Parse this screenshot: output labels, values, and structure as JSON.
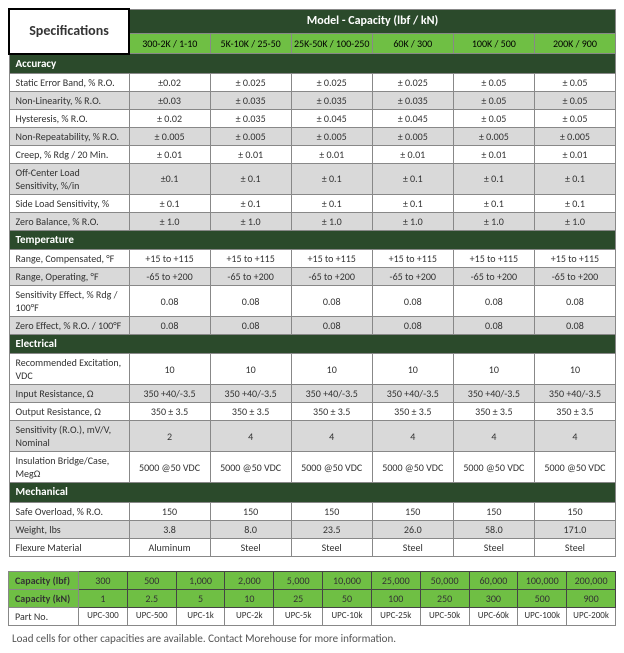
{
  "title": "Specifications",
  "model_header": "Model - Capacity (lbf / kN)",
  "columns": [
    "300-2K / 1-10",
    "5K-10K / 25-50",
    "25K-50K / 100-250",
    "60K / 300",
    "100K / 500",
    "200K / 900"
  ],
  "sections": [
    {
      "name": "Accuracy",
      "rows": [
        {
          "label": "Static Error Band, % R.O.",
          "vals": [
            "±0.02",
            "± 0.025",
            "± 0.025",
            "± 0.025",
            "± 0.05",
            "± 0.05"
          ]
        },
        {
          "label": "Non-Linearity, % R.O.",
          "vals": [
            "±0.03",
            "± 0.035",
            "± 0.035",
            "± 0.035",
            "± 0.05",
            "± 0.05"
          ]
        },
        {
          "label": "Hysteresis, % R.O.",
          "vals": [
            "± 0.02",
            "± 0.035",
            "± 0.045",
            "± 0.045",
            "± 0.05",
            "± 0.05"
          ]
        },
        {
          "label": "Non-Repeatability, % R.O.",
          "vals": [
            "± 0.005",
            "± 0.005",
            "± 0.005",
            "± 0.005",
            "± 0.005",
            "± 0.005"
          ]
        },
        {
          "label": "Creep, % Rdg / 20 Min.",
          "vals": [
            "± 0.01",
            "± 0.01",
            "± 0.01",
            "± 0.01",
            "± 0.01",
            "± 0.01"
          ]
        },
        {
          "label": "Off-Center Load Sensitivity, %/in",
          "vals": [
            "±0.1",
            "± 0.1",
            "± 0.1",
            "± 0.1",
            "± 0.1",
            "± 0.1"
          ]
        },
        {
          "label": "Side Load Sensitivity, %",
          "vals": [
            "± 0.1",
            "± 0.1",
            "± 0.1",
            "± 0.1",
            "± 0.1",
            "± 0.1"
          ]
        },
        {
          "label": "Zero Balance, % R.O.",
          "vals": [
            "± 1.0",
            "± 1.0",
            "± 1.0",
            "± 1.0",
            "± 1.0",
            "± 1.0"
          ]
        }
      ]
    },
    {
      "name": "Temperature",
      "rows": [
        {
          "label": "Range, Compensated, °F",
          "vals": [
            "+15 to +115",
            "+15 to +115",
            "+15 to +115",
            "+15 to +115",
            "+15 to +115",
            "+15 to +115"
          ]
        },
        {
          "label": "Range, Operating, °F",
          "vals": [
            "-65 to +200",
            "-65 to +200",
            "-65 to +200",
            "-65 to +200",
            "-65 to +200",
            "-65 to +200"
          ]
        },
        {
          "label": "Sensitivity Effect, % Rdg / 100°F",
          "vals": [
            "0.08",
            "0.08",
            "0.08",
            "0.08",
            "0.08",
            "0.08"
          ]
        },
        {
          "label": "Zero Effect, % R.O. / 100°F",
          "vals": [
            "0.08",
            "0.08",
            "0.08",
            "0.08",
            "0.08",
            "0.08"
          ]
        }
      ]
    },
    {
      "name": "Electrical",
      "rows": [
        {
          "label": "Recommended Excitation, VDC",
          "vals": [
            "10",
            "10",
            "10",
            "10",
            "10",
            "10"
          ]
        },
        {
          "label": "Input Resistance, Ω",
          "vals": [
            "350 +40/-3.5",
            "350 +40/-3.5",
            "350 +40/-3.5",
            "350 +40/-3.5",
            "350 +40/-3.5",
            "350 +40/-3.5"
          ]
        },
        {
          "label": "Output Resistance, Ω",
          "vals": [
            "350 ± 3.5",
            "350 ± 3.5",
            "350 ± 3.5",
            "350 ± 3.5",
            "350 ± 3.5",
            "350 ± 3.5"
          ]
        },
        {
          "label": "Sensitivity (R.O.), mV/V, Nominal",
          "vals": [
            "2",
            "4",
            "4",
            "4",
            "4",
            "4"
          ]
        },
        {
          "label": "Insulation Bridge/Case, MegΩ",
          "vals": [
            "5000 @50 VDC",
            "5000 @50 VDC",
            "5000 @50 VDC",
            "5000 @50 VDC",
            "5000 @50 VDC",
            "5000 @50 VDC"
          ]
        }
      ]
    },
    {
      "name": "Mechanical",
      "rows": [
        {
          "label": "Safe Overload, % R.O.",
          "vals": [
            "150",
            "150",
            "150",
            "150",
            "150",
            "150"
          ]
        },
        {
          "label": "Weight, lbs",
          "vals": [
            "3.8",
            "8.0",
            "23.5",
            "26.0",
            "58.0",
            "171.0"
          ]
        },
        {
          "label": "Flexure Material",
          "vals": [
            "Aluminum",
            "Steel",
            "Steel",
            "Steel",
            "Steel",
            "Steel"
          ]
        }
      ]
    }
  ],
  "table2": {
    "rows": [
      {
        "label": "Capacity (lbf)",
        "vals": [
          "300",
          "500",
          "1,000",
          "2,000",
          "5,000",
          "10,000",
          "25,000",
          "50,000",
          "60,000",
          "100,000",
          "200,000"
        ]
      },
      {
        "label": "Capacity (kN)",
        "vals": [
          "1",
          "2.5",
          "5",
          "10",
          "25",
          "50",
          "100",
          "250",
          "300",
          "500",
          "900"
        ]
      },
      {
        "label": "Part No.",
        "vals": [
          "UPC-300",
          "UPC-500",
          "UPC-1k",
          "UPC-2k",
          "UPC-5k",
          "UPC-10k",
          "UPC-25k",
          "UPC-50k",
          "UPC-60k",
          "UPC-100k",
          "UPC-200k"
        ]
      }
    ]
  },
  "note": "Load cells for other capacities are available. Contact Morehouse for more information."
}
